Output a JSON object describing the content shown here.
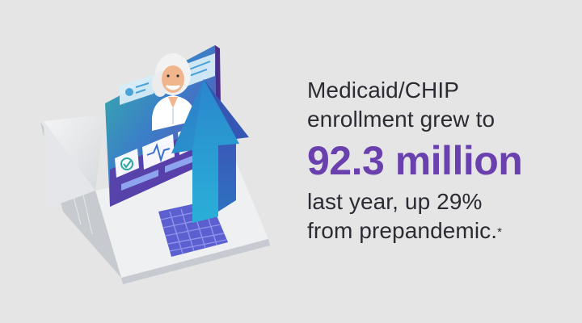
{
  "text": {
    "line1": "Medicaid/CHIP",
    "line2": "enrollment grew to",
    "highlight": "92.3 million",
    "line3": "last year, up 29%",
    "line4": "from prepandemic.",
    "footnote_mark": "*"
  },
  "illustration": {
    "icons": [
      "doctor-avatar-icon",
      "chat-bubble-icon",
      "heartbeat-icon",
      "close-x-icon",
      "checkmark-shield-icon",
      "up-arrow-icon"
    ]
  },
  "colors": {
    "background": "#e4e5e4",
    "text": "#2b2b33",
    "accent_purple": "#6a3fae",
    "arrow_blue": "#2f8fd0",
    "screen_teal": "#2aa7a0"
  }
}
